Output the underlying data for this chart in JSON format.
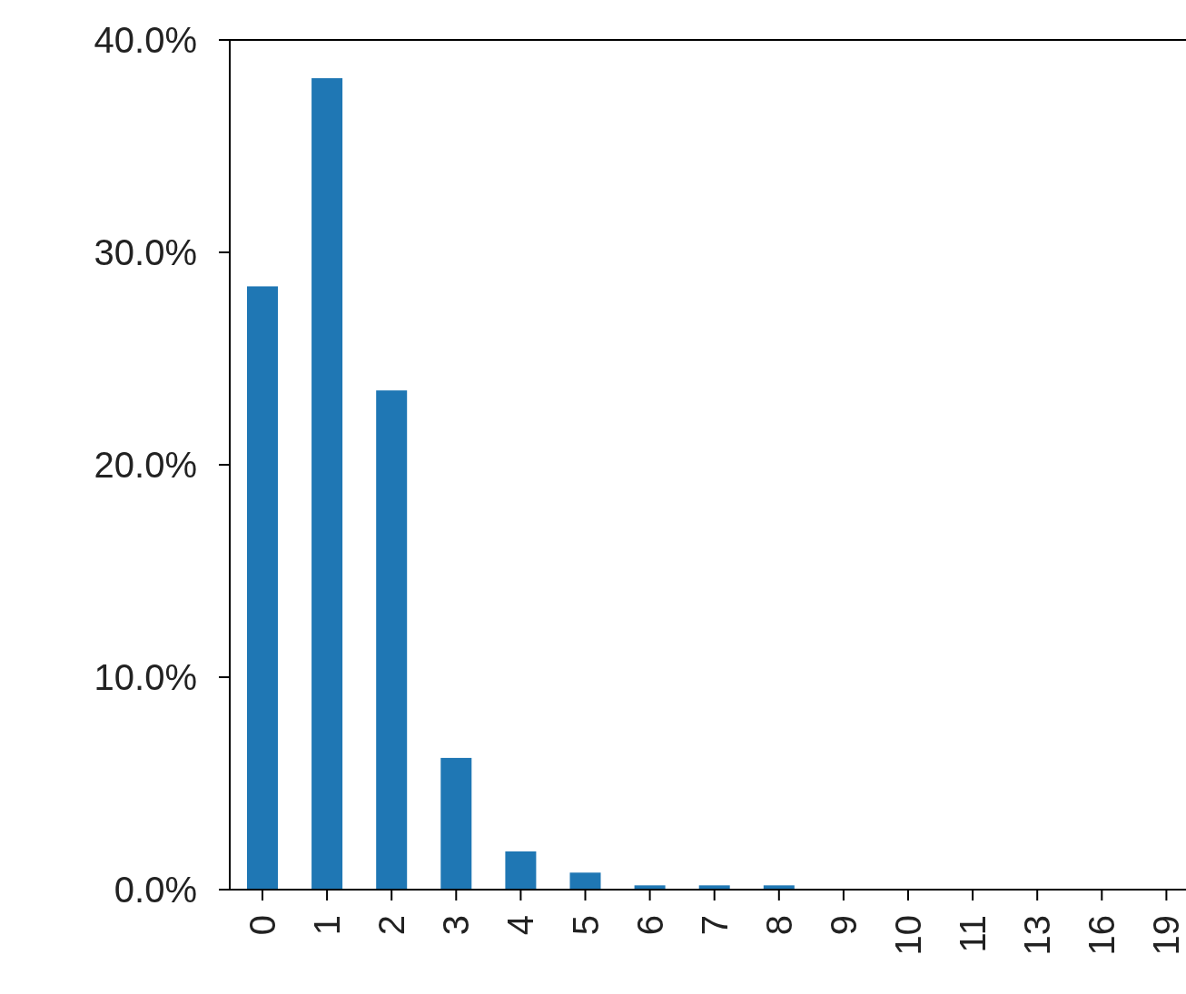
{
  "chart_data": {
    "type": "bar",
    "categories": [
      "0",
      "1",
      "2",
      "3",
      "4",
      "5",
      "6",
      "7",
      "8",
      "9",
      "10",
      "11",
      "13",
      "16",
      "19"
    ],
    "values": [
      28.4,
      38.2,
      23.5,
      6.2,
      1.8,
      0.8,
      0.2,
      0.2,
      0.2,
      0,
      0,
      0,
      0,
      0,
      0
    ],
    "color": "#1f77b4",
    "ylim": [
      0,
      40
    ],
    "yticks": [
      {
        "value": 0,
        "label": "0.0%"
      },
      {
        "value": 10,
        "label": "10.0%"
      },
      {
        "value": 20,
        "label": "20.0%"
      },
      {
        "value": 30,
        "label": "30.0%"
      },
      {
        "value": 40,
        "label": "40.0%"
      }
    ],
    "grid": false
  }
}
